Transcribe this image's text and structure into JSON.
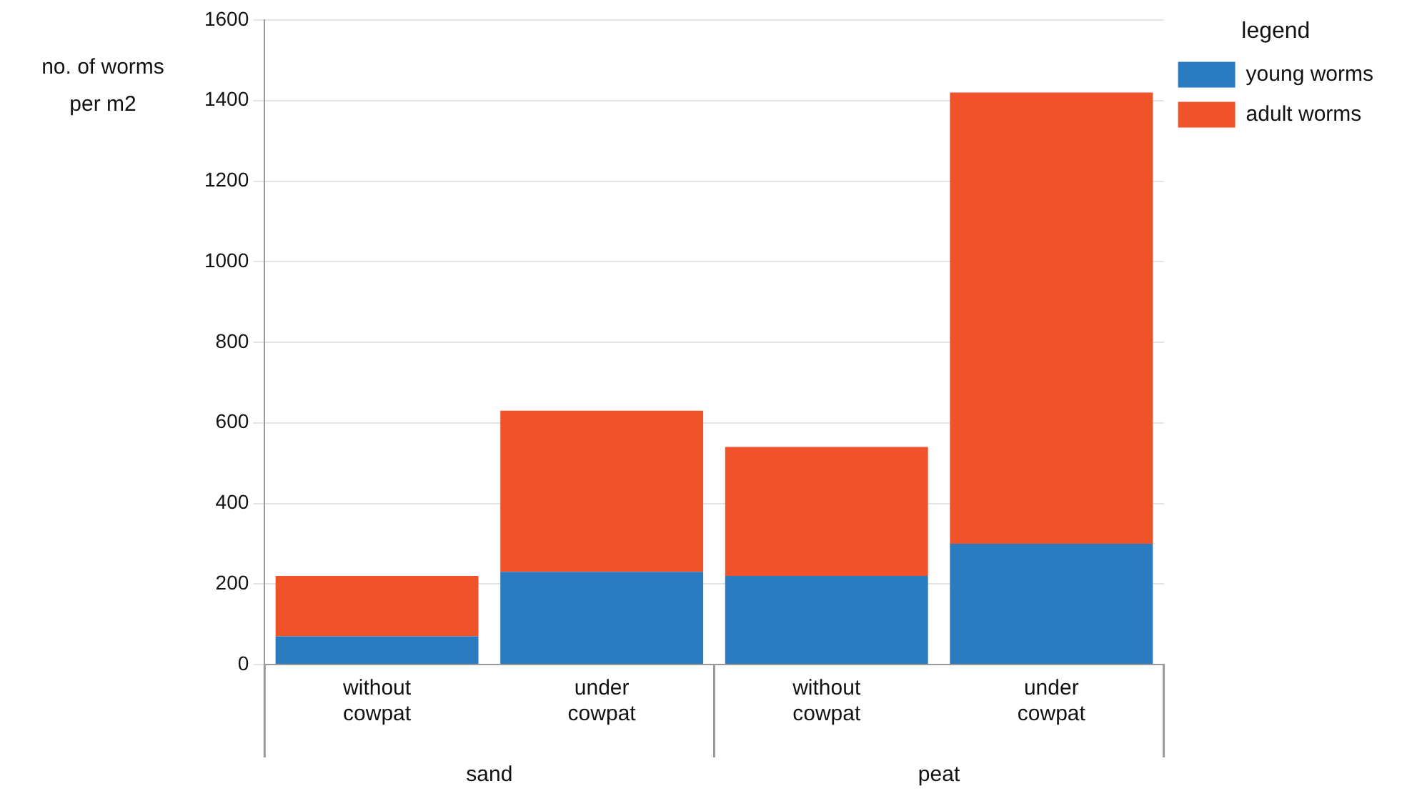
{
  "chart_data": {
    "type": "bar",
    "stacked": true,
    "ylabel": "no. of worms per m2",
    "legend_title": "legend",
    "legend": "top right",
    "categories": [
      "without cowpat",
      "under cowpat",
      "without cowpat",
      "under cowpat"
    ],
    "series": [
      {
        "name": "young worms",
        "color": "#2a7bbf",
        "values": [
          70,
          230,
          220,
          300
        ]
      },
      {
        "name": "adult worms",
        "color": "#f0532a",
        "values": [
          150,
          400,
          320,
          1120
        ]
      }
    ],
    "ylim": [
      0,
      1600
    ],
    "yticks": [
      0,
      200,
      400,
      600,
      800,
      1000,
      1200,
      1400,
      1600
    ],
    "grid": "y",
    "annotations": [
      "sand",
      "peat"
    ]
  }
}
